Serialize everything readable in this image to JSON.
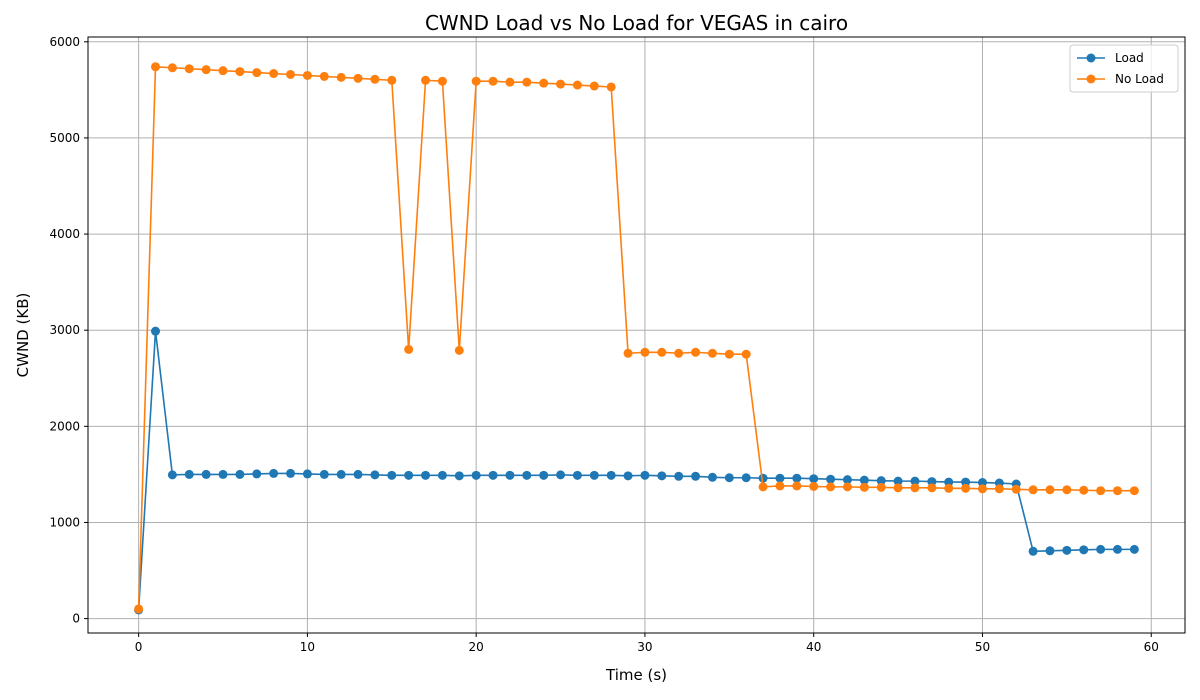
{
  "chart_data": {
    "type": "line",
    "title": "CWND Load vs No Load for VEGAS in cairo",
    "xlabel": "Time (s)",
    "ylabel": "CWND (KB)",
    "xlim": [
      -3,
      62
    ],
    "ylim": [
      -150,
      6050
    ],
    "xticks": [
      0,
      10,
      20,
      30,
      40,
      50,
      60
    ],
    "yticks": [
      0,
      1000,
      2000,
      3000,
      4000,
      5000,
      6000
    ],
    "grid": true,
    "legend_position": "top-right",
    "x": [
      0,
      1,
      2,
      3,
      4,
      5,
      6,
      7,
      8,
      9,
      10,
      11,
      12,
      13,
      14,
      15,
      16,
      17,
      18,
      19,
      20,
      21,
      22,
      23,
      24,
      25,
      26,
      27,
      28,
      29,
      30,
      31,
      32,
      33,
      34,
      35,
      36,
      37,
      38,
      39,
      40,
      41,
      42,
      43,
      44,
      45,
      46,
      47,
      48,
      49,
      50,
      51,
      52,
      53,
      54,
      55,
      56,
      57,
      58,
      59
    ],
    "series": [
      {
        "name": "Load",
        "color": "#1f77b4",
        "values": [
          90,
          2990,
          1495,
          1500,
          1500,
          1500,
          1500,
          1505,
          1510,
          1510,
          1505,
          1500,
          1500,
          1500,
          1495,
          1490,
          1490,
          1490,
          1490,
          1485,
          1490,
          1490,
          1490,
          1490,
          1490,
          1495,
          1490,
          1490,
          1490,
          1485,
          1490,
          1485,
          1480,
          1480,
          1470,
          1465,
          1465,
          1460,
          1460,
          1460,
          1455,
          1450,
          1445,
          1440,
          1435,
          1430,
          1430,
          1425,
          1420,
          1420,
          1415,
          1410,
          1400,
          700,
          705,
          710,
          715,
          720,
          720,
          720
        ]
      },
      {
        "name": "No Load",
        "color": "#ff7f0e",
        "values": [
          100,
          5740,
          5730,
          5720,
          5710,
          5700,
          5690,
          5680,
          5670,
          5660,
          5650,
          5640,
          5630,
          5620,
          5610,
          5600,
          2800,
          5600,
          5590,
          2790,
          5590,
          5590,
          5580,
          5580,
          5570,
          5560,
          5550,
          5540,
          5530,
          2760,
          2770,
          2770,
          2760,
          2770,
          2760,
          2750,
          2750,
          1370,
          1380,
          1380,
          1375,
          1370,
          1370,
          1365,
          1365,
          1360,
          1360,
          1360,
          1355,
          1355,
          1350,
          1350,
          1345,
          1340,
          1340,
          1340,
          1335,
          1330,
          1330,
          1330
        ]
      }
    ]
  }
}
